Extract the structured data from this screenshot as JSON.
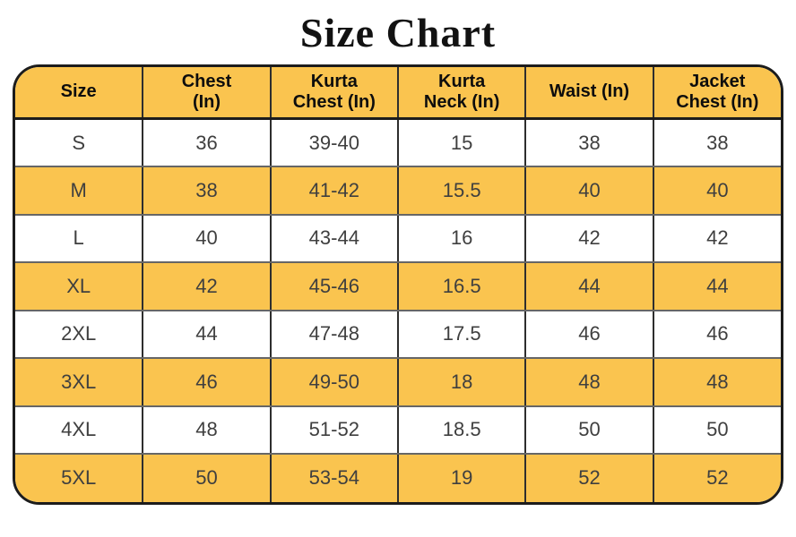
{
  "title": "Size Chart",
  "colors": {
    "highlight": "#FAC44F",
    "row-white": "#FFFFFF",
    "border-outer": "#1C1C1C",
    "border-vertical": "#2E2E2E",
    "border-horizontal": "#666666",
    "header-text": "#0D0D0D",
    "cell-text": "#3F3F3F",
    "title-text": "#121212"
  },
  "chart_data": {
    "type": "table",
    "title": "Size Chart",
    "headers": [
      "Size",
      "Chest (In)",
      "Kurta Chest (In)",
      "Kurta Neck (In)",
      "Waist (In)",
      "Jacket Chest (In)"
    ],
    "rows": [
      [
        "S",
        "36",
        "39-40",
        "15",
        "38",
        "38"
      ],
      [
        "M",
        "38",
        "41-42",
        "15.5",
        "40",
        "40"
      ],
      [
        "L",
        "40",
        "43-44",
        "16",
        "42",
        "42"
      ],
      [
        "XL",
        "42",
        "45-46",
        "16.5",
        "44",
        "44"
      ],
      [
        "2XL",
        "44",
        "47-48",
        "17.5",
        "46",
        "46"
      ],
      [
        "3XL",
        "46",
        "49-50",
        "18",
        "48",
        "48"
      ],
      [
        "4XL",
        "48",
        "51-52",
        "18.5",
        "50",
        "50"
      ],
      [
        "5XL",
        "50",
        "53-54",
        "19",
        "52",
        "52"
      ]
    ],
    "layout_hints": {
      "striped_rows": true,
      "stripe_color": "#FAC44F",
      "header_fill": "#FAC44F",
      "rounded_border": true
    }
  },
  "table": {
    "header_display": [
      "Size",
      "Chest\n(In)",
      "Kurta\nChest (In)",
      "Kurta\nNeck (In)",
      "Waist (In)",
      "Jacket\nChest (In)"
    ],
    "rows": [
      [
        "S",
        "36",
        "39-40",
        "15",
        "38",
        "38"
      ],
      [
        "M",
        "38",
        "41-42",
        "15.5",
        "40",
        "40"
      ],
      [
        "L",
        "40",
        "43-44",
        "16",
        "42",
        "42"
      ],
      [
        "XL",
        "42",
        "45-46",
        "16.5",
        "44",
        "44"
      ],
      [
        "2XL",
        "44",
        "47-48",
        "17.5",
        "46",
        "46"
      ],
      [
        "3XL",
        "46",
        "49-50",
        "18",
        "48",
        "48"
      ],
      [
        "4XL",
        "48",
        "51-52",
        "18.5",
        "50",
        "50"
      ],
      [
        "5XL",
        "50",
        "53-54",
        "19",
        "52",
        "52"
      ]
    ]
  }
}
